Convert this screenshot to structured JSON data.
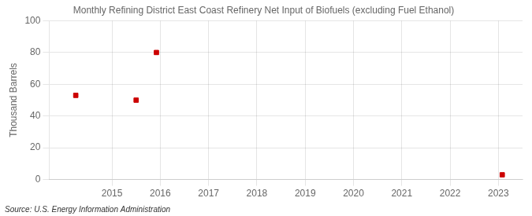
{
  "chart_data": {
    "type": "scatter",
    "title": "Monthly Refining District East Coast Refinery Net Input of Biofuels (excluding Fuel Ethanol)",
    "ylabel": "Thousand Barrels",
    "source": "Source: U.S. Energy Information Administration",
    "x": [
      2014.25,
      2015.5,
      2015.92,
      2023.08
    ],
    "values": [
      53,
      50,
      80,
      3
    ],
    "color": "#cc0000",
    "marker": "square",
    "xlim": [
      2013.7,
      2023.5
    ],
    "ylim": [
      0,
      100
    ],
    "xticks": [
      2015,
      2016,
      2017,
      2018,
      2019,
      2020,
      2021,
      2022,
      2023
    ],
    "yticks": [
      0,
      20,
      40,
      60,
      80,
      100
    ],
    "grid": true
  }
}
